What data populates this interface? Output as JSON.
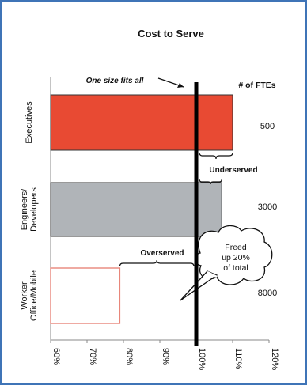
{
  "frame_color": "#3f74b7",
  "chart_data": {
    "type": "bar",
    "orientation": "horizontal",
    "title": "Cost to Serve",
    "categories": [
      "Executives",
      "Engineers/\nDevelopers",
      "Worker\nOffice/Mobile"
    ],
    "values": [
      110,
      107,
      79
    ],
    "fte_header": "# of FTEs",
    "fte_values": [
      "500",
      "3000",
      "8000"
    ],
    "colors": {
      "Executives": "#e84a33",
      "Engineers/\nDevelopers": "#b0b4b8",
      "Worker\nOffice/Mobile": "#ffffff",
      "worker_outline": "#e8867a",
      "reference_line": "#000000"
    },
    "xlim": [
      60,
      120
    ],
    "xticks": [
      "60%",
      "70%",
      "80%",
      "90%",
      "100%",
      "110%",
      "120%"
    ],
    "xtick_values": [
      60,
      70,
      80,
      90,
      100,
      110,
      120
    ],
    "reference_line": {
      "value": 100,
      "label": "One size fits all"
    },
    "annotations": [
      {
        "text": "Underserved",
        "from": 100,
        "to": 110,
        "category": "Executives"
      },
      {
        "text": "Overserved",
        "from": 79,
        "to": 100,
        "category": "Worker\nOffice/Mobile"
      },
      {
        "text": "Freed\nup 20%\nof total"
      }
    ],
    "grid": false,
    "legend": "none"
  }
}
